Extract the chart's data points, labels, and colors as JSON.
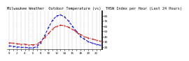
{
  "title": "Milwaukee Weather  Outdoor Temperature (vs)  THSW Index per Hour (Last 24 Hours)",
  "hours": [
    0,
    1,
    2,
    3,
    4,
    5,
    6,
    7,
    8,
    9,
    10,
    11,
    12,
    13,
    14,
    15,
    16,
    17,
    18,
    19,
    20,
    21,
    22,
    23
  ],
  "temp": [
    28,
    27,
    26,
    25,
    25,
    24,
    24,
    25,
    30,
    38,
    46,
    55,
    60,
    62,
    61,
    58,
    54,
    49,
    44,
    40,
    37,
    35,
    33,
    31
  ],
  "thsw": [
    22,
    21,
    20,
    19,
    19,
    18,
    18,
    20,
    28,
    42,
    58,
    72,
    80,
    82,
    78,
    70,
    60,
    50,
    40,
    35,
    30,
    27,
    25,
    23
  ],
  "temp_color": "#cc0000",
  "thsw_color": "#0000cc",
  "bg_color": "#ffffff",
  "grid_color": "#888888",
  "ylim_min": 15,
  "ylim_max": 90,
  "yticks": [
    20,
    30,
    40,
    50,
    60,
    70,
    80
  ],
  "title_fontsize": 3.8,
  "tick_fontsize": 3.0,
  "linewidth": 0.7,
  "markersize": 0.8
}
